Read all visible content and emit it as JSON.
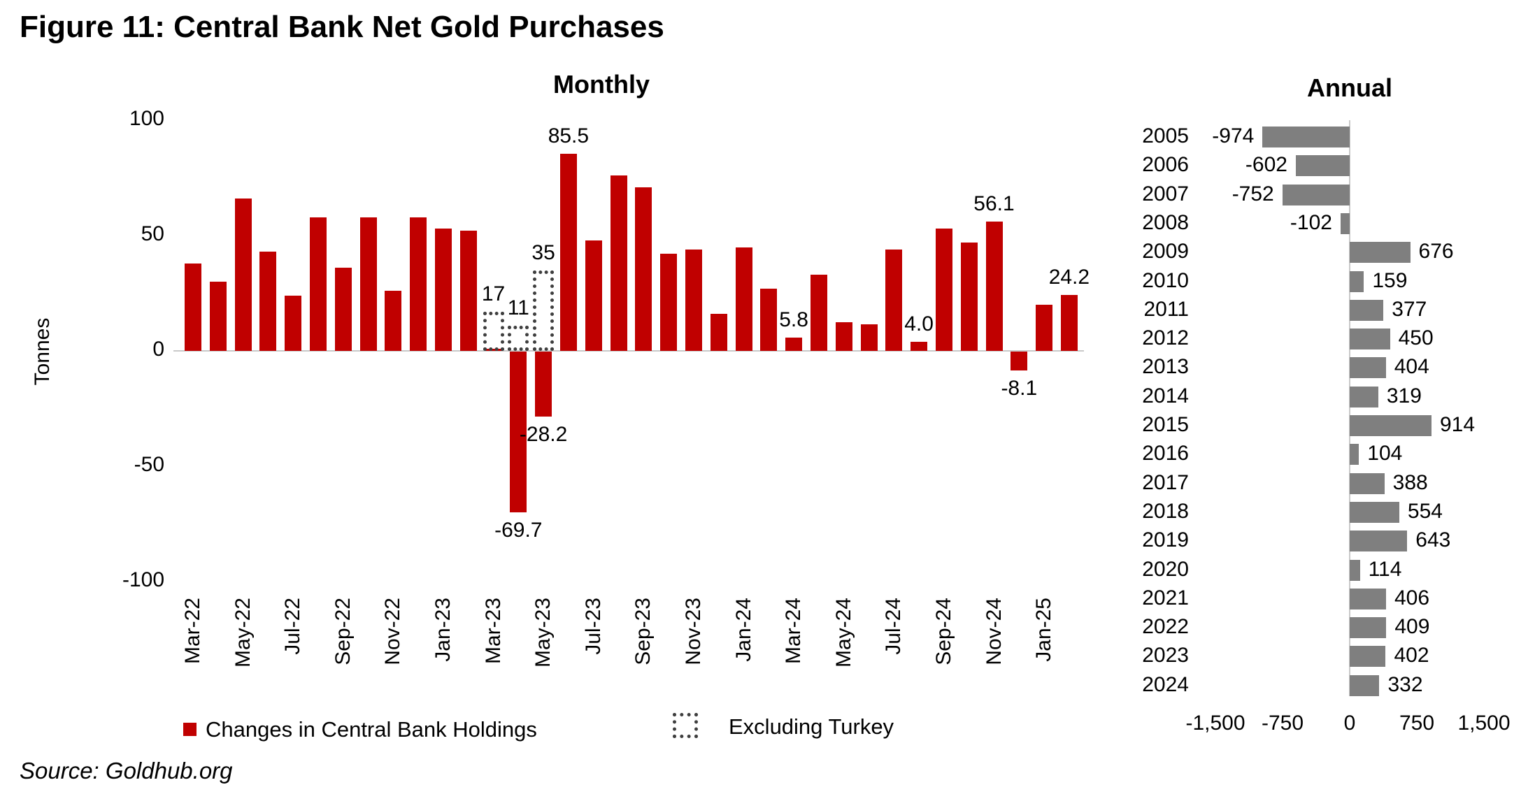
{
  "title": "Figure 11: Central Bank Net Gold Purchases",
  "source": "Source: Goldhub.org",
  "colors": {
    "bar_red": "#C00000",
    "bar_gray": "#7F7F7F",
    "axis_gray": "#C9C9C9",
    "dotted_outline": "#3F3F3F"
  },
  "legend": [
    {
      "label": "Changes in Central Bank Holdings",
      "swatch": "red-filled-square"
    },
    {
      "label": "Excluding Turkey",
      "swatch": "dotted-outline-square"
    }
  ],
  "chart_data": [
    {
      "type": "bar",
      "title": "Monthly",
      "ylabel": "Tonnes",
      "ylim": [
        -100,
        100
      ],
      "yticks": [
        "100",
        "50",
        "0",
        "-50",
        "-100"
      ],
      "ytick_values": [
        100,
        50,
        0,
        -50,
        -100
      ],
      "grid": false,
      "categories": [
        "Mar-22",
        "Apr-22",
        "May-22",
        "Jun-22",
        "Jul-22",
        "Aug-22",
        "Sep-22",
        "Oct-22",
        "Nov-22",
        "Dec-22",
        "Jan-23",
        "Feb-23",
        "Mar-23",
        "Apr-23",
        "May-23",
        "Jun-23",
        "Jul-23",
        "Aug-23",
        "Sep-23",
        "Oct-23",
        "Nov-23",
        "Dec-23",
        "Jan-24",
        "Feb-24",
        "Mar-24",
        "Apr-24",
        "May-24",
        "Jun-24",
        "Jul-24",
        "Aug-24",
        "Sep-24",
        "Oct-24",
        "Nov-24",
        "Dec-24",
        "Jan-25",
        "Feb-25"
      ],
      "values": [
        38,
        30,
        66,
        43,
        24,
        58,
        36,
        58,
        26,
        58,
        53,
        52,
        1,
        -69.7,
        -28.2,
        85.5,
        48,
        76,
        71,
        42,
        44,
        16,
        45,
        27,
        5.8,
        33,
        12.5,
        11.5,
        44,
        4,
        53,
        47,
        56.1,
        -8.1,
        20,
        24.2
      ],
      "xticks": [
        "Mar-22",
        "May-22",
        "Jul-22",
        "Sep-22",
        "Nov-22",
        "Jan-23",
        "Mar-23",
        "May-23",
        "Jul-23",
        "Sep-23",
        "Nov-23",
        "Jan-24",
        "Mar-24",
        "May-24",
        "Jul-24",
        "Sep-24",
        "Nov-24",
        "Jan-25"
      ],
      "xtick_every": 2,
      "excluding_turkey": [
        {
          "month": "Mar-23",
          "value": 17
        },
        {
          "month": "Apr-23",
          "value": 11
        },
        {
          "month": "May-23",
          "value": 35
        }
      ],
      "data_labels": [
        {
          "month": "Mar-23",
          "text": "17",
          "on": "dotted"
        },
        {
          "month": "Apr-23",
          "text": "11",
          "on": "dotted"
        },
        {
          "month": "May-23",
          "text": "35",
          "on": "dotted"
        },
        {
          "month": "Apr-23",
          "text": "-69.7",
          "on": "bar"
        },
        {
          "month": "May-23",
          "text": "-28.2",
          "on": "bar"
        },
        {
          "month": "Jun-23",
          "text": "85.5",
          "on": "bar"
        },
        {
          "month": "Mar-24",
          "text": "5.8",
          "on": "bar"
        },
        {
          "month": "Aug-24",
          "text": "4.0",
          "on": "bar"
        },
        {
          "month": "Nov-24",
          "text": "56.1",
          "on": "bar"
        },
        {
          "month": "Dec-24",
          "text": "-8.1",
          "on": "bar"
        },
        {
          "month": "Feb-25",
          "text": "24.2",
          "on": "bar"
        }
      ]
    },
    {
      "type": "bar",
      "orientation": "horizontal",
      "title": "Annual",
      "categories": [
        "2005",
        "2006",
        "2007",
        "2008",
        "2009",
        "2010",
        "2011",
        "2012",
        "2013",
        "2014",
        "2015",
        "2016",
        "2017",
        "2018",
        "2019",
        "2020",
        "2021",
        "2022",
        "2023",
        "2024"
      ],
      "values": [
        -974,
        -602,
        -752,
        -102,
        676,
        159,
        377,
        450,
        404,
        319,
        914,
        104,
        388,
        554,
        643,
        114,
        406,
        409,
        402,
        332
      ],
      "xticks": [
        "-1,500",
        "-750",
        "0",
        "750",
        "1,500"
      ],
      "xtick_values": [
        -1500,
        -750,
        0,
        750,
        1500
      ],
      "xlim": [
        -1500,
        1500
      ],
      "grid": false
    }
  ]
}
